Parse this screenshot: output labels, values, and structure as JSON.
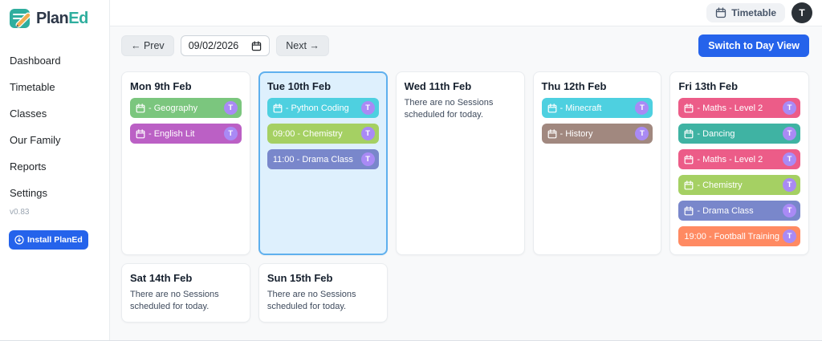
{
  "app": {
    "brand_plan": "Plan",
    "brand_ed": "Ed",
    "version": "v0.83",
    "install_label": "Install PlanEd"
  },
  "sidebar": {
    "items": [
      {
        "label": "Dashboard"
      },
      {
        "label": "Timetable"
      },
      {
        "label": "Classes"
      },
      {
        "label": "Our Family"
      },
      {
        "label": "Reports"
      },
      {
        "label": "Settings"
      }
    ]
  },
  "header": {
    "timetable_label": "Timetable",
    "avatar_initial": "T"
  },
  "toolbar": {
    "prev_label": "← Prev",
    "date_value": "09/02/2026",
    "next_label": "Next →",
    "switch_label": "Switch to Day View"
  },
  "week": {
    "badge_label": "T",
    "badge_color": "#a98af5",
    "empty_message": "There are no Sessions scheduled for today.",
    "today_bg": "#def0fd",
    "today_border": "#5fb0ee",
    "days": [
      {
        "title": "Mon 9th Feb",
        "today": false,
        "sessions": [
          {
            "icon": true,
            "text": "- Geography",
            "color": "#7bc67e"
          },
          {
            "icon": true,
            "text": "- English Lit",
            "color": "#bb60c5"
          }
        ]
      },
      {
        "title": "Tue 10th Feb",
        "today": true,
        "sessions": [
          {
            "icon": true,
            "text": "- Python Coding",
            "color": "#4ed0e0"
          },
          {
            "icon": false,
            "text": "09:00 - Chemistry",
            "color": "#a5d063"
          },
          {
            "icon": false,
            "text": "11:00 - Drama Class",
            "color": "#7987cb"
          }
        ]
      },
      {
        "title": "Wed 11th Feb",
        "today": false,
        "sessions": []
      },
      {
        "title": "Thu 12th Feb",
        "today": false,
        "sessions": [
          {
            "icon": true,
            "text": "- Minecraft",
            "color": "#4ed0e0"
          },
          {
            "icon": true,
            "text": "- History",
            "color": "#a1887f"
          }
        ]
      },
      {
        "title": "Fri 13th Feb",
        "today": false,
        "sessions": [
          {
            "icon": true,
            "text": "- Maths - Level 2",
            "color": "#ec5c88"
          },
          {
            "icon": true,
            "text": "- Dancing",
            "color": "#3fb3a3"
          },
          {
            "icon": true,
            "text": "- Maths - Level 2",
            "color": "#ec5c88"
          },
          {
            "icon": true,
            "text": "- Chemistry",
            "color": "#a5d063"
          },
          {
            "icon": true,
            "text": "- Drama Class",
            "color": "#7987cb"
          },
          {
            "icon": false,
            "text": "19:00 - Football Training",
            "color": "#ff8a62"
          }
        ]
      },
      {
        "title": "Sat 14th Feb",
        "today": false,
        "sessions": []
      },
      {
        "title": "Sun 15th Feb",
        "today": false,
        "sessions": []
      }
    ]
  },
  "colors": {
    "accent_blue": "#2563eb",
    "brand_teal": "#2fae9e"
  }
}
